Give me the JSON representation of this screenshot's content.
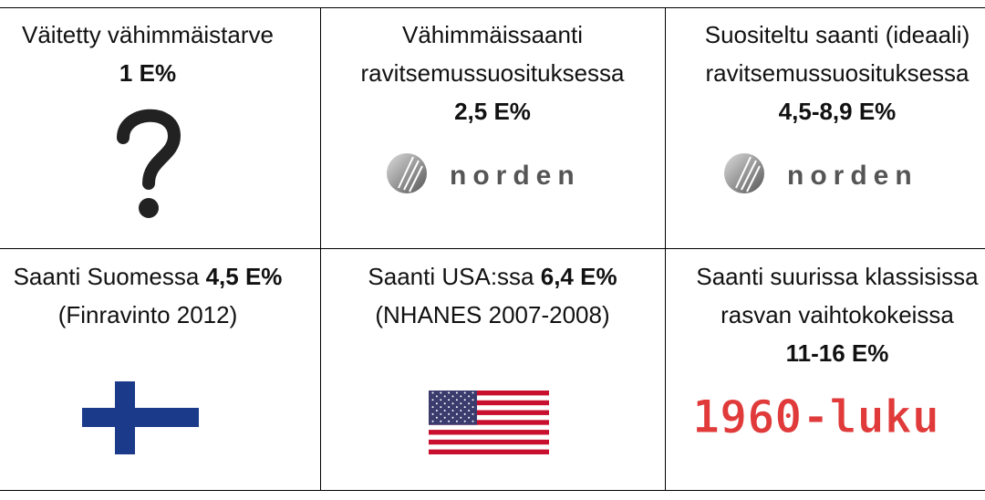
{
  "rows": [
    [
      {
        "text": [
          "Väitetty vähimmäistarve"
        ],
        "value": "1 E%"
      },
      {
        "text": [
          "Vähimmäissaanti",
          "ravitsemussuosituksessa"
        ],
        "value": "2,5 E%",
        "logo": "norden"
      },
      {
        "text": [
          "Suositeltu saanti (ideaali)",
          "ravitsemussuosituksessa"
        ],
        "value": "4,5-8,9 E%",
        "logo": "norden"
      }
    ],
    [
      {
        "text": [
          "Saanti Suomessa"
        ],
        "value": "4,5 E%",
        "source": "(Finravinto 2012)"
      },
      {
        "text": [
          "Saanti USA:ssa"
        ],
        "value": "6,4 E%",
        "source": "(NHANES 2007-2008)"
      },
      {
        "text": [
          "Saanti suurissa klassisissa",
          "rasvan vaihtokokeissa"
        ],
        "value": "11-16 E%",
        "badge": "1960-luku"
      }
    ]
  ]
}
